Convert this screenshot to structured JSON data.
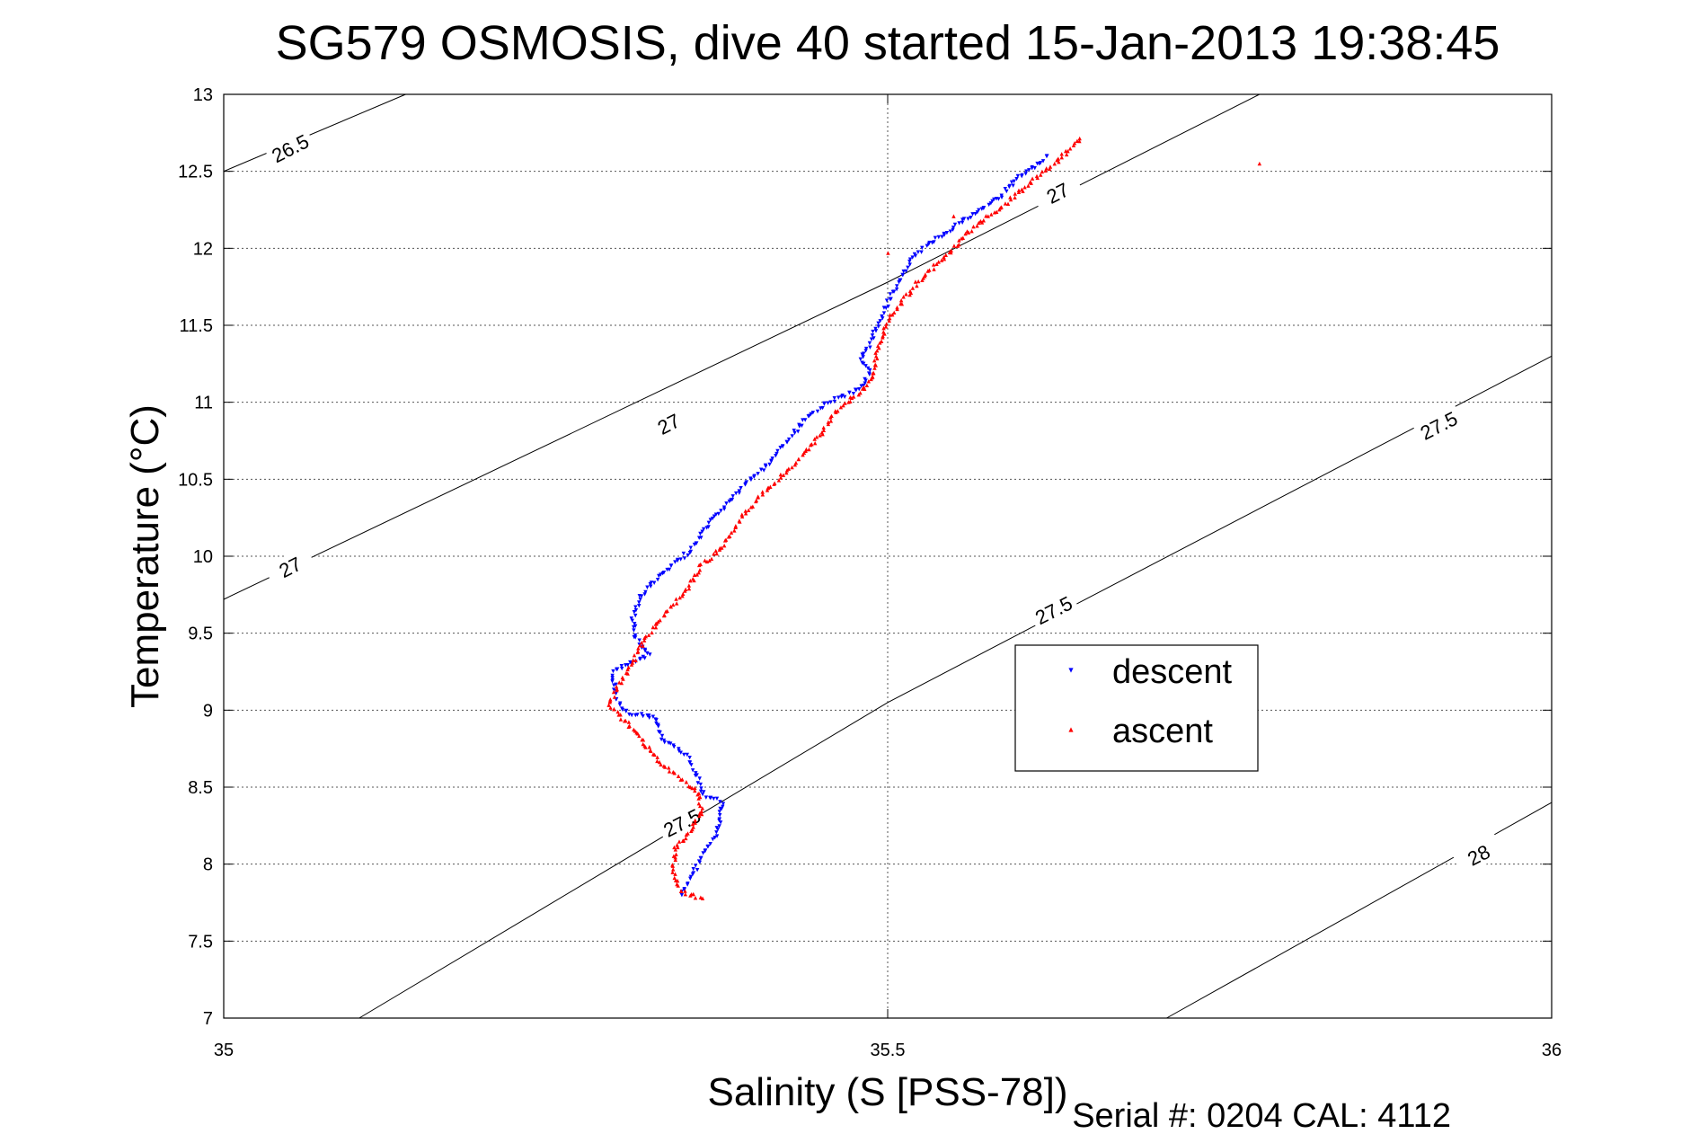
{
  "chart_data": {
    "type": "scatter",
    "title": "SG579 OSMOSIS, dive 40 started 15-Jan-2013 19:38:45",
    "xlabel": "Salinity (S [PSS-78])",
    "ylabel": "Temperature (°C)",
    "footer": "Serial #: 0204  CAL: 4112",
    "xlim": [
      35,
      36
    ],
    "ylim": [
      7,
      13
    ],
    "x_ticks": [
      35,
      35.5,
      36
    ],
    "x_tick_labels": [
      "35",
      "35.5",
      "36"
    ],
    "y_ticks": [
      7,
      7.5,
      8,
      8.5,
      9,
      9.5,
      10,
      10.5,
      11,
      11.5,
      12,
      12.5,
      13
    ],
    "y_tick_labels": [
      "7",
      "7.5",
      "8",
      "8.5",
      "9",
      "9.5",
      "10",
      "10.5",
      "11",
      "11.5",
      "12",
      "12.5",
      "13"
    ],
    "grid": true,
    "legend_position": "center-right",
    "density_contours": [
      {
        "level": "26.5",
        "points": [
          [
            35.0,
            12.5
          ],
          [
            35.137,
            13.0
          ]
        ]
      },
      {
        "level": "27",
        "points": [
          [
            35.0,
            9.72
          ],
          [
            35.5,
            11.78
          ],
          [
            35.78,
            13.0
          ]
        ]
      },
      {
        "level": "27.5",
        "points": [
          [
            35.102,
            7.0
          ],
          [
            35.5,
            9.05
          ],
          [
            36.0,
            11.3
          ]
        ]
      },
      {
        "level": "28",
        "points": [
          [
            35.71,
            7.0
          ],
          [
            36.0,
            8.4
          ]
        ]
      }
    ],
    "contour_labels": [
      {
        "text": "26.5",
        "x": 35.05,
        "y": 12.65
      },
      {
        "text": "27",
        "x": 35.335,
        "y": 10.86
      },
      {
        "text": "27",
        "x": 35.05,
        "y": 9.93
      },
      {
        "text": "27",
        "x": 35.628,
        "y": 12.36
      },
      {
        "text": "27.5",
        "x": 35.915,
        "y": 10.85
      },
      {
        "text": "27.5",
        "x": 35.625,
        "y": 9.65
      },
      {
        "text": "27.5",
        "x": 35.345,
        "y": 8.27
      },
      {
        "text": "28",
        "x": 35.945,
        "y": 8.06
      }
    ],
    "series": [
      {
        "name": "descent",
        "color": "#0000ff",
        "marker": "triangle-down",
        "x": [
          35.345,
          35.35,
          35.36,
          35.372,
          35.375,
          35.362,
          35.355,
          35.349,
          35.34,
          35.33,
          35.328,
          35.325,
          35.318,
          35.305,
          35.3,
          35.295,
          35.293,
          35.32,
          35.31,
          35.308,
          35.315,
          35.326,
          35.34,
          35.353,
          35.365,
          35.38,
          35.395,
          35.41,
          35.425,
          35.44,
          35.455,
          35.47,
          35.48,
          35.487,
          35.48,
          35.485,
          35.49,
          35.495,
          35.5,
          35.51,
          35.52,
          35.535,
          35.552,
          35.57,
          35.587,
          35.597,
          35.61,
          35.62
        ],
        "y": [
          7.8,
          7.88,
          8.05,
          8.2,
          8.4,
          8.45,
          8.6,
          8.7,
          8.75,
          8.82,
          8.9,
          8.95,
          8.97,
          8.98,
          9.0,
          9.1,
          9.25,
          9.35,
          9.48,
          9.6,
          9.75,
          9.85,
          9.95,
          10.05,
          10.2,
          10.35,
          10.48,
          10.6,
          10.75,
          10.9,
          11.0,
          11.05,
          11.1,
          11.2,
          11.27,
          11.35,
          11.45,
          11.55,
          11.65,
          11.8,
          11.95,
          12.05,
          12.15,
          12.25,
          12.35,
          12.45,
          12.52,
          12.6
        ]
      },
      {
        "name": "ascent",
        "color": "#ff0000",
        "marker": "triangle-up",
        "x": [
          35.36,
          35.345,
          35.338,
          35.34,
          35.35,
          35.36,
          35.358,
          35.345,
          35.33,
          35.32,
          35.31,
          35.3,
          35.29,
          35.3,
          35.31,
          35.32,
          35.335,
          35.35,
          35.36,
          35.375,
          35.39,
          35.405,
          35.42,
          35.435,
          35.45,
          35.458,
          35.47,
          35.48,
          35.49,
          35.49,
          35.495,
          35.498,
          35.51,
          35.525,
          35.54,
          35.56,
          35.575,
          35.59,
          35.61,
          35.625,
          35.638,
          35.645,
          35.55,
          35.5,
          35.78
        ],
        "y": [
          7.78,
          7.82,
          7.95,
          8.1,
          8.2,
          8.35,
          8.45,
          8.55,
          8.65,
          8.75,
          8.85,
          8.95,
          9.05,
          9.2,
          9.35,
          9.5,
          9.65,
          9.8,
          9.95,
          10.05,
          10.25,
          10.4,
          10.52,
          10.65,
          10.8,
          10.92,
          11.0,
          11.08,
          11.18,
          11.25,
          11.4,
          11.5,
          11.65,
          11.8,
          11.92,
          12.1,
          12.2,
          12.3,
          12.45,
          12.55,
          12.65,
          12.72,
          12.2,
          11.97,
          12.55
        ]
      }
    ]
  }
}
